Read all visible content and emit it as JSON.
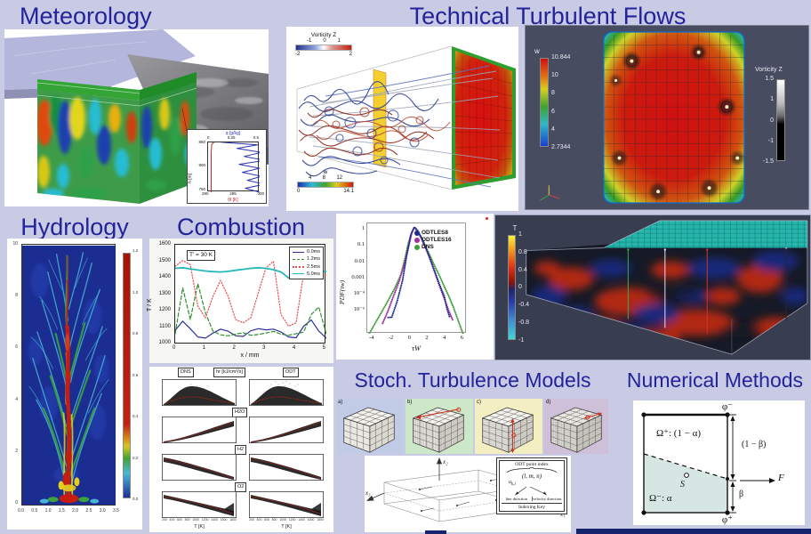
{
  "page": {
    "background": "#c9cae4",
    "title_color": "#23239b",
    "bottom_bar_color": "#16246e"
  },
  "sections": {
    "meteorology": {
      "title": "Meteorology"
    },
    "technical": {
      "title": "Technical Turbulent Flows",
      "duct_legends": {
        "vorticity": {
          "label": "Vorticity Z",
          "ticks": [
            "-1",
            "0",
            "1"
          ],
          "min": "-2",
          "max": "2"
        },
        "w": {
          "label": "w",
          "ticks": [
            "4",
            "8",
            "12"
          ],
          "min": "0",
          "max": "14.1"
        }
      },
      "cross_section": {
        "w_label": "w",
        "w_ticks": [
          "10.844",
          "10",
          "8",
          "6",
          "4",
          "2.7344"
        ],
        "vorticity_label": "Vorticity Z",
        "vorticity_ticks": [
          "1.5",
          "1",
          "0",
          "-1",
          "-1.5"
        ]
      }
    },
    "hydrology": {
      "title": "Hydrology"
    },
    "combustion": {
      "title": "Combustion"
    },
    "stoch": {
      "title": "Stoch. Turbulence Models",
      "panels": [
        {
          "label": "a)",
          "bg": "#c2cbe6"
        },
        {
          "label": "b)",
          "bg": "#cde7c9"
        },
        {
          "label": "c)",
          "bg": "#f3efc2"
        },
        {
          "label": "d)",
          "bg": "#cfc0da"
        }
      ]
    },
    "numerical": {
      "title": "Numerical Methods",
      "phi_minus": "φ⁻",
      "phi_plus": "φ⁺",
      "omega_plus": "Ω⁺: (1 − α)",
      "omega_minus": "Ω⁻: α",
      "one_minus_beta": "(1 − β)",
      "beta": "β",
      "flux": "F",
      "point": "S"
    },
    "dns_box": {
      "t_label": "T",
      "t_ticks": [
        "1",
        "0.8",
        "0.4",
        "0",
        "-0.4",
        "-0.8",
        "-1"
      ]
    },
    "indexing": {
      "x1": "x₁",
      "x2": "x₂",
      "x3": "x₃",
      "key_title": "ODT point index",
      "tuple": "(l, m, n)",
      "symbol_base": "u",
      "symbol_sub": "k,i",
      "left_label": "line direction",
      "right_label": "velocity direction",
      "footer": "Indexing Key"
    }
  },
  "chart_data": [
    {
      "id": "combustion_profiles",
      "type": "line",
      "annotation": "T' = 30 K",
      "xlabel": "x / mm",
      "ylabel": "T / K",
      "xlim": [
        0,
        5
      ],
      "ylim": [
        1000,
        1600
      ],
      "x_ticks": [
        "0",
        "1",
        "2",
        "3",
        "4",
        "5"
      ],
      "y_ticks": [
        "1600",
        "1500",
        "1400",
        "1300",
        "1200",
        "1100",
        "1000"
      ],
      "x": [
        0,
        0.25,
        0.5,
        0.75,
        1,
        1.25,
        1.5,
        1.75,
        2,
        2.25,
        2.5,
        2.75,
        3,
        3.25,
        3.5,
        3.75,
        4,
        4.25,
        4.5,
        4.75,
        5
      ],
      "series": [
        {
          "label": "0.0ms",
          "color": "#2a2f9e",
          "dash": "solid",
          "values": [
            1085,
            1140,
            1095,
            1045,
            1038,
            1068,
            1092,
            1080,
            1052,
            1048,
            1082,
            1095,
            1088,
            1092,
            1075,
            1045,
            1040,
            1110,
            1148,
            1080,
            1038
          ]
        },
        {
          "label": "1.2ms",
          "color": "#2f8f2f",
          "dash": "dashed",
          "values": [
            1065,
            1340,
            1150,
            1365,
            1190,
            1080,
            1058,
            1052,
            1062,
            1070,
            1055,
            1060,
            1068,
            1078,
            1062,
            1055,
            1065,
            1075,
            1180,
            1225,
            1062
          ]
        },
        {
          "label": "2.5ms",
          "color": "#e84c4c",
          "dash": "dotted",
          "values": [
            1470,
            1505,
            1480,
            1230,
            1160,
            1290,
            1385,
            1290,
            1150,
            1130,
            1160,
            1310,
            1460,
            1500,
            1180,
            1110,
            1130,
            1430,
            1445,
            1400,
            1420
          ]
        },
        {
          "label": "5.0ms",
          "color": "#25b8b8",
          "dash": "solid",
          "values": [
            1458,
            1462,
            1455,
            1448,
            1442,
            1438,
            1436,
            1440,
            1446,
            1452,
            1458,
            1462,
            1458,
            1450,
            1436,
            1400,
            1432,
            1408,
            1438,
            1444,
            1438
          ]
        }
      ]
    },
    {
      "id": "combustion_dns_odt_scatter",
      "type": "scatter",
      "col_headers": [
        "DNS",
        "ODT"
      ],
      "quantity_label": "hr [kJ/cm³/s]",
      "row_labels": [
        "H2O",
        "H2",
        "O2"
      ],
      "xlabel": "T [K]",
      "x_ticks": [
        "200",
        "400",
        "600",
        "800",
        "1000",
        "1200",
        "1400",
        "1600",
        "1800"
      ]
    },
    {
      "id": "pdf_wall_shear",
      "type": "scatter",
      "xlabel": "τW",
      "ylabel": "PDF(τw)",
      "x_ticks": [
        "-4",
        "-2",
        "0",
        "2",
        "4",
        "6"
      ],
      "y_ticks": [
        "1",
        "0.1",
        "0.01",
        "0.001",
        "10⁻⁴",
        "10⁻⁵"
      ],
      "xlim": [
        -4,
        6
      ],
      "ylog": true,
      "series": [
        {
          "name": "ODTLES8",
          "color": "#232a8f",
          "points": [
            [
              -2.2,
              1.3e-05
            ],
            [
              -1.8,
              1.3e-05
            ],
            [
              -1.2,
              0.0001
            ],
            [
              -0.6,
              0.0015
            ],
            [
              -0.1,
              0.05
            ],
            [
              0.3,
              0.5
            ],
            [
              0.7,
              1.4
            ],
            [
              1,
              1
            ],
            [
              1.5,
              0.35
            ],
            [
              2,
              0.09
            ],
            [
              2.5,
              0.02
            ],
            [
              3,
              0.004
            ],
            [
              3.5,
              0.0008
            ],
            [
              4,
              0.0002
            ],
            [
              4.3,
              4e-05
            ],
            [
              4.6,
              1.3e-05
            ]
          ]
        },
        {
          "name": "ODTLES16",
          "color": "#a0309a",
          "points": [
            [
              -2.8,
              6e-06
            ],
            [
              -2.2,
              3e-05
            ],
            [
              -1.6,
              0.0002
            ],
            [
              -1,
              0.0012
            ],
            [
              -0.4,
              0.012
            ],
            [
              0,
              0.08
            ],
            [
              0.4,
              0.6
            ],
            [
              0.7,
              1.35
            ],
            [
              1,
              0.95
            ],
            [
              1.5,
              0.3
            ],
            [
              2,
              0.08
            ],
            [
              2.5,
              0.018
            ],
            [
              3,
              0.0035
            ],
            [
              3.5,
              0.0007
            ],
            [
              4,
              0.00015
            ],
            [
              4.5,
              3e-05
            ],
            [
              5,
              8e-06
            ]
          ]
        },
        {
          "name": "DNS",
          "color": "#3f9e3b",
          "points": [
            [
              -4.3,
              1.5e-06
            ],
            [
              -3.5,
              8e-06
            ],
            [
              -2.5,
              6e-05
            ],
            [
              -1.5,
              0.0005
            ],
            [
              -0.8,
              0.003
            ],
            [
              -0.3,
              0.03
            ],
            [
              0,
              0.15
            ],
            [
              0.4,
              0.7
            ],
            [
              0.7,
              1.3
            ],
            [
              1,
              0.9
            ],
            [
              1.5,
              0.35
            ],
            [
              2,
              0.1
            ],
            [
              2.5,
              0.03
            ],
            [
              3,
              0.008
            ],
            [
              3.5,
              0.0025
            ],
            [
              4,
              0.0007
            ],
            [
              4.5,
              0.0002
            ],
            [
              5,
              5e-05
            ],
            [
              5.5,
              1e-05
            ],
            [
              6,
              2e-06
            ],
            [
              6.3,
              1e-06
            ]
          ]
        }
      ]
    },
    {
      "id": "hydrology_field",
      "type": "heatmap",
      "x_ticks": [
        "0.0",
        "0.5",
        "1.0",
        "1.5",
        "2.0",
        "2.5",
        "3.0",
        "3.5"
      ],
      "y_ticks": [
        "10",
        "8",
        "6",
        "4",
        "2",
        "0"
      ],
      "colorbar_ticks": [
        "1.2",
        "1.0",
        "0.8",
        "0.6",
        "0.4",
        "0.2",
        "0.0"
      ],
      "value_range": [
        0,
        1.2
      ]
    },
    {
      "id": "met_inset_profiles",
      "type": "line",
      "top_axis": {
        "label": "q [g/kg]",
        "ticks": [
          "0",
          "0.25",
          "0.5"
        ],
        "color": "#2a35b0"
      },
      "left_axis": {
        "label": "h [m]",
        "ticks": [
          "850",
          "800",
          "750"
        ]
      },
      "bottom_axis": {
        "label": "θl [K]",
        "ticks": [
          "290",
          "295",
          "300"
        ],
        "color": "#c22a22"
      },
      "series": [
        {
          "name": "theta_l",
          "axis": "bottom",
          "color": "#c22a22",
          "points": [
            [
              290.6,
              742
            ],
            [
              290.6,
              790
            ],
            [
              290.6,
              830
            ],
            [
              290.7,
              846
            ],
            [
              291.2,
              851
            ],
            [
              293.5,
              855
            ],
            [
              297.5,
              858
            ],
            [
              300.5,
              860
            ]
          ]
        },
        {
          "name": "q",
          "axis": "top",
          "color": "#2a35b0",
          "points": [
            [
              0.45,
              740
            ],
            [
              0.5,
              750
            ],
            [
              0.36,
              758
            ],
            [
              0.55,
              766
            ],
            [
              0.38,
              774
            ],
            [
              0.52,
              782
            ],
            [
              0.33,
              790
            ],
            [
              0.5,
              798
            ],
            [
              0.3,
              806
            ],
            [
              0.55,
              814
            ],
            [
              0.35,
              822
            ],
            [
              0.52,
              830
            ],
            [
              0.28,
              838
            ],
            [
              0.48,
              845
            ],
            [
              0.15,
              850
            ],
            [
              0.03,
              853
            ],
            [
              0.02,
              860
            ]
          ]
        }
      ]
    }
  ]
}
